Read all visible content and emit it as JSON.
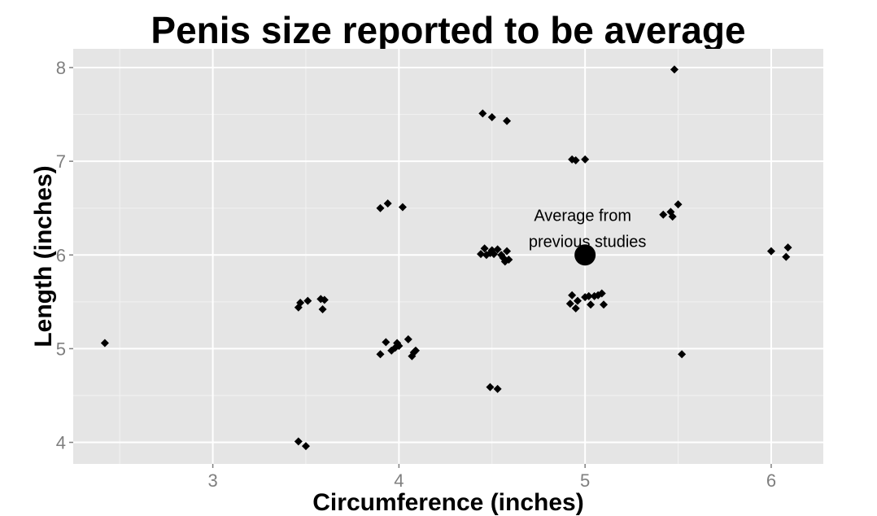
{
  "chart_data": {
    "type": "scatter",
    "title": "Penis size reported to be average",
    "xlabel": "Circumference (inches)",
    "ylabel": "Length (inches)",
    "xlim": [
      2.25,
      6.28
    ],
    "ylim": [
      3.77,
      8.2
    ],
    "x_ticks": [
      3,
      4,
      5,
      6
    ],
    "y_ticks": [
      4,
      5,
      6,
      7,
      8
    ],
    "grid": true,
    "background": "#e5e5e5",
    "grid_major_color": "#ffffff",
    "grid_minor_color": "#f2f2f2",
    "point_color": "#000000",
    "series": [
      {
        "values": [
          [
            2.42,
            5.06
          ],
          [
            3.46,
            4.01
          ],
          [
            3.5,
            3.96
          ],
          [
            3.46,
            5.44
          ],
          [
            3.47,
            5.49
          ],
          [
            3.51,
            5.51
          ],
          [
            3.58,
            5.53
          ],
          [
            3.6,
            5.52
          ],
          [
            3.59,
            5.42
          ],
          [
            3.9,
            4.94
          ],
          [
            3.93,
            5.07
          ],
          [
            3.96,
            4.98
          ],
          [
            3.98,
            5.01
          ],
          [
            3.99,
            5.06
          ],
          [
            4.0,
            5.03
          ],
          [
            4.05,
            5.1
          ],
          [
            4.07,
            4.92
          ],
          [
            4.08,
            4.96
          ],
          [
            4.09,
            4.98
          ],
          [
            3.9,
            6.5
          ],
          [
            3.94,
            6.55
          ],
          [
            4.02,
            6.51
          ],
          [
            4.44,
            6.01
          ],
          [
            4.46,
            6.07
          ],
          [
            4.47,
            6.0
          ],
          [
            4.49,
            6.02
          ],
          [
            4.5,
            6.05
          ],
          [
            4.51,
            6.01
          ],
          [
            4.53,
            6.06
          ],
          [
            4.55,
            6.0
          ],
          [
            4.56,
            5.97
          ],
          [
            4.57,
            5.93
          ],
          [
            4.58,
            6.04
          ],
          [
            4.59,
            5.95
          ],
          [
            4.49,
            4.59
          ],
          [
            4.53,
            4.57
          ],
          [
            4.45,
            7.51
          ],
          [
            4.5,
            7.47
          ],
          [
            4.58,
            7.43
          ],
          [
            4.93,
            7.02
          ],
          [
            4.95,
            7.01
          ],
          [
            5.0,
            7.02
          ],
          [
            4.92,
            5.48
          ],
          [
            4.93,
            5.57
          ],
          [
            4.95,
            5.43
          ],
          [
            4.96,
            5.51
          ],
          [
            5.0,
            5.55
          ],
          [
            5.02,
            5.56
          ],
          [
            5.03,
            5.47
          ],
          [
            5.05,
            5.56
          ],
          [
            5.07,
            5.57
          ],
          [
            5.09,
            5.59
          ],
          [
            5.1,
            5.47
          ],
          [
            5.42,
            6.43
          ],
          [
            5.46,
            6.46
          ],
          [
            5.47,
            6.41
          ],
          [
            5.5,
            6.54
          ],
          [
            5.48,
            7.98
          ],
          [
            5.52,
            4.94
          ],
          [
            6.0,
            6.04
          ],
          [
            6.08,
            5.98
          ],
          [
            6.09,
            6.08
          ]
        ]
      }
    ],
    "highlight": {
      "x": 5.0,
      "y": 6.0,
      "label_line1": "Average from",
      "label_line2": "previous studies"
    }
  }
}
